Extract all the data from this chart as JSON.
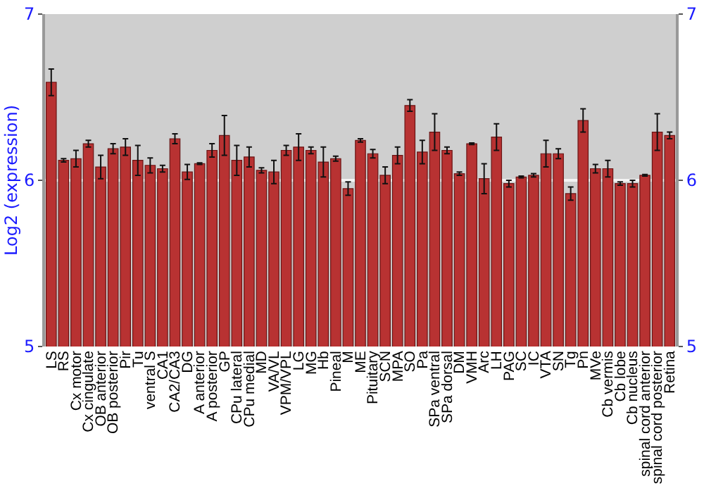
{
  "chart_data": {
    "type": "bar",
    "ylabel": "Log2 (expression)",
    "categories": [
      "LS",
      "RS",
      "Cx motor",
      "Cx cingulate",
      "OB anterior",
      "OB posterior",
      "Pir",
      "Tu",
      "ventral S",
      "CA1",
      "CA2/CA3",
      "DG",
      "A anterior",
      "A posterior",
      "GP",
      "CPu lateral",
      "CPu medial",
      "MD",
      "VA/VL",
      "VPM/VPL",
      "LG",
      "MG",
      "Hb",
      "Pineal",
      "M",
      "ME",
      "Pituitary",
      "SCN",
      "MPA",
      "SO",
      "Pa",
      "SPa ventral",
      "SPa dorsal",
      "DM",
      "VMH",
      "Arc",
      "LH",
      "PAG",
      "SC",
      "IC",
      "VTA",
      "SN",
      "Tg",
      "Pn",
      "MVe",
      "Cb vermis",
      "Cb lobe",
      "Cb nucleus",
      "spinal cord anterior",
      "spinal cord posterior",
      "Retina"
    ],
    "values": [
      6.59,
      6.12,
      6.13,
      6.22,
      6.08,
      6.19,
      6.2,
      6.12,
      6.09,
      6.07,
      6.25,
      6.05,
      6.1,
      6.18,
      6.27,
      6.12,
      6.14,
      6.06,
      6.05,
      6.18,
      6.2,
      6.18,
      6.11,
      6.13,
      5.95,
      6.24,
      6.16,
      6.03,
      6.15,
      6.45,
      6.17,
      6.29,
      6.18,
      6.04,
      6.22,
      6.01,
      6.26,
      5.98,
      6.02,
      6.03,
      6.16,
      6.16,
      5.92,
      6.36,
      6.07,
      6.07,
      5.98,
      5.98,
      6.03,
      6.29,
      6.27
    ],
    "errors": [
      0.08,
      0.01,
      0.05,
      0.02,
      0.07,
      0.03,
      0.05,
      0.09,
      0.045,
      0.02,
      0.03,
      0.045,
      0.005,
      0.04,
      0.12,
      0.09,
      0.06,
      0.015,
      0.07,
      0.03,
      0.08,
      0.02,
      0.09,
      0.015,
      0.04,
      0.01,
      0.025,
      0.05,
      0.05,
      0.035,
      0.07,
      0.11,
      0.02,
      0.01,
      0.005,
      0.09,
      0.08,
      0.02,
      0.005,
      0.01,
      0.08,
      0.03,
      0.04,
      0.07,
      0.025,
      0.05,
      0.01,
      0.02,
      0.005,
      0.11,
      0.02
    ],
    "color": "#b83232",
    "ylim": [
      5,
      7
    ],
    "yticks": [
      5,
      6,
      7
    ],
    "y2lim": [
      5,
      7
    ],
    "y2ticks": [
      5,
      6,
      7
    ],
    "grid": "y"
  }
}
